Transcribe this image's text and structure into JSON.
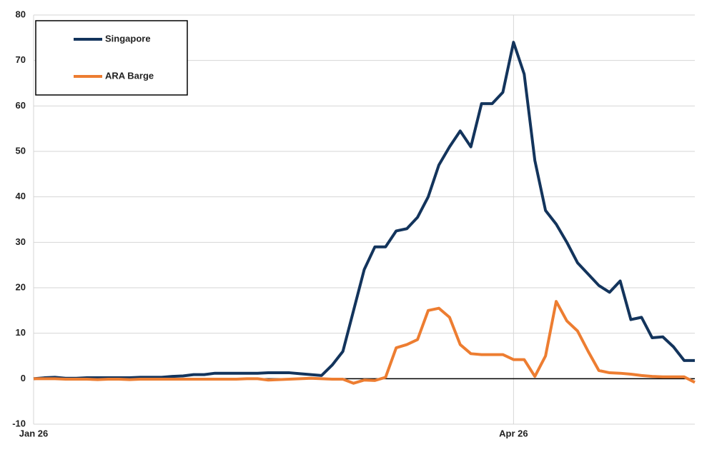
{
  "chart_data": {
    "type": "line",
    "categories": [
      "Jan 26",
      null,
      null,
      null,
      null,
      null,
      null,
      null,
      null,
      null,
      null,
      null,
      null,
      null,
      null,
      null,
      null,
      null,
      null,
      null,
      null,
      null,
      null,
      null,
      null,
      null,
      null,
      null,
      null,
      null,
      null,
      null,
      null,
      null,
      null,
      null,
      null,
      null,
      null,
      null,
      null,
      null,
      null,
      null,
      null,
      "Apr 26",
      null,
      null,
      null,
      null,
      null,
      null,
      null,
      null,
      null,
      null,
      null,
      null,
      null,
      null,
      null,
      null,
      null
    ],
    "series": [
      {
        "name": "Singapore",
        "color": "#13345c",
        "values": [
          0,
          0.2,
          0.3,
          0.1,
          0.1,
          0.2,
          0.2,
          0.2,
          0.2,
          0.2,
          0.3,
          0.3,
          0.3,
          0.5,
          0.6,
          0.9,
          0.9,
          1.2,
          1.2,
          1.2,
          1.2,
          1.2,
          1.3,
          1.3,
          1.3,
          1.1,
          0.9,
          0.7,
          3,
          6,
          15,
          24,
          29,
          29,
          32.5,
          33,
          35.5,
          40,
          47,
          51,
          54.5,
          51,
          60.5,
          60.5,
          63,
          74,
          67,
          48,
          37,
          34,
          30,
          25.5,
          23,
          20.5,
          19,
          21.5,
          13,
          13.5,
          9,
          9.2,
          7,
          4,
          4
        ]
      },
      {
        "name": "ARA Barge",
        "color": "#ed7d31",
        "values": [
          0,
          0,
          0,
          -0.1,
          -0.1,
          -0.1,
          -0.2,
          -0.1,
          -0.1,
          -0.2,
          -0.1,
          -0.1,
          -0.1,
          -0.1,
          -0.1,
          -0.1,
          -0.1,
          -0.1,
          -0.1,
          -0.1,
          0,
          0,
          -0.3,
          -0.2,
          -0.1,
          0,
          0.1,
          0,
          -0.1,
          -0.1,
          -1,
          -0.3,
          -0.4,
          0.3,
          6.8,
          7.5,
          8.6,
          15,
          15.5,
          13.5,
          7.5,
          5.5,
          5.3,
          5.3,
          5.3,
          4.2,
          4.2,
          0.5,
          5,
          17,
          12.7,
          10.5,
          6,
          1.8,
          1.3,
          1.2,
          1,
          0.7,
          0.5,
          0.4,
          0.4,
          0.4,
          -0.8
        ]
      }
    ],
    "ylim": [
      -10,
      80
    ],
    "yticks": [
      -10,
      0,
      10,
      20,
      30,
      40,
      50,
      60,
      70,
      80
    ],
    "grid": true,
    "legend": "top-left"
  }
}
